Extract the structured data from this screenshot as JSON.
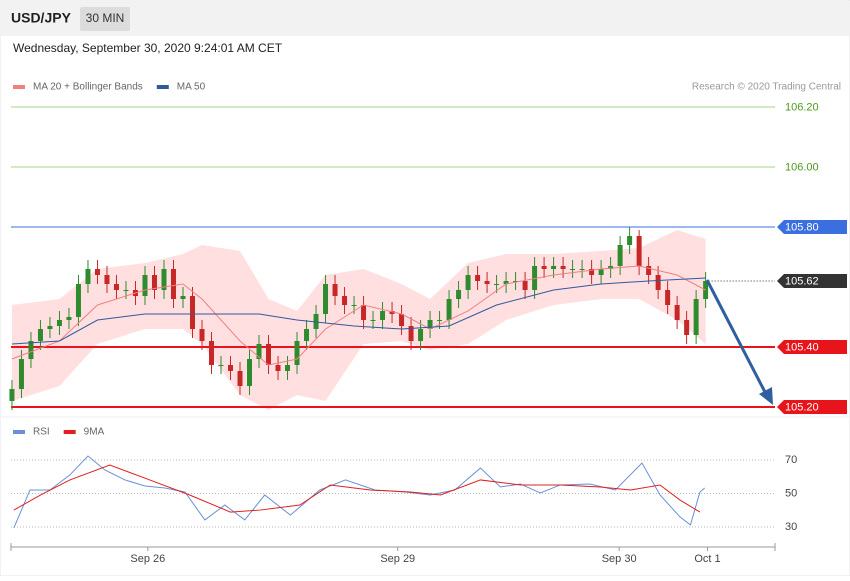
{
  "header": {
    "symbol": "USD/JPY",
    "interval": "30 MIN",
    "timestamp": "Wednesday, September 30, 2020 9:24:01 AM CET"
  },
  "chart_data": [
    {
      "type": "candlestick",
      "credit": "Research © 2020 Trading Central",
      "xlim": [
        -0.1,
        80.3
      ],
      "xticks": [
        {
          "value": 14.3,
          "label": "Sep 26"
        },
        {
          "value": 40.6,
          "label": "Sep 29"
        },
        {
          "value": 63.9,
          "label": "Sep 30"
        },
        {
          "value": 73.2,
          "label": "Oct 1"
        }
      ],
      "ylim": [
        105.18,
        106.24
      ],
      "up_color": "#2e8b2e",
      "down_color": "#c62828",
      "open": [
        105.22,
        105.26,
        105.36,
        105.42,
        105.46,
        105.47,
        105.49,
        105.5,
        105.61,
        105.66,
        105.64,
        105.61,
        105.59,
        105.59,
        105.57,
        105.64,
        105.59,
        105.66,
        105.56,
        105.57,
        105.46,
        105.42,
        105.34,
        105.34,
        105.32,
        105.27,
        105.36,
        105.41,
        105.34,
        105.32,
        105.34,
        105.42,
        105.46,
        105.51,
        105.61,
        105.57,
        105.54,
        105.54,
        105.49,
        105.49,
        105.52,
        105.51,
        105.47,
        105.42,
        105.46,
        105.49,
        105.49,
        105.56,
        105.59,
        105.64,
        105.62,
        105.61,
        105.61,
        105.62,
        105.62,
        105.59,
        105.67,
        105.66,
        105.67,
        105.66,
        105.66,
        105.66,
        105.64,
        105.66,
        105.67,
        105.74,
        105.77,
        105.67,
        105.64,
        105.59,
        105.54,
        105.49,
        105.44,
        105.56
      ],
      "high": [
        105.29,
        105.39,
        105.45,
        105.49,
        105.5,
        105.52,
        105.53,
        105.64,
        105.69,
        105.69,
        105.67,
        105.64,
        105.62,
        105.62,
        105.67,
        105.67,
        105.69,
        105.69,
        105.6,
        105.6,
        105.49,
        105.45,
        105.37,
        105.37,
        105.35,
        105.39,
        105.44,
        105.44,
        105.37,
        105.37,
        105.45,
        105.49,
        105.54,
        105.64,
        105.64,
        105.6,
        105.57,
        105.57,
        105.52,
        105.55,
        105.55,
        105.54,
        105.5,
        105.49,
        105.52,
        105.52,
        105.59,
        105.62,
        105.67,
        105.67,
        105.65,
        105.64,
        105.65,
        105.65,
        105.65,
        105.7,
        105.7,
        105.7,
        105.7,
        105.69,
        105.69,
        105.69,
        105.69,
        105.7,
        105.77,
        105.8,
        105.79,
        105.7,
        105.67,
        105.62,
        105.57,
        105.52,
        105.59,
        105.65
      ],
      "low": [
        105.19,
        105.23,
        105.33,
        105.39,
        105.43,
        105.44,
        105.46,
        105.47,
        105.58,
        105.61,
        105.58,
        105.56,
        105.56,
        105.54,
        105.54,
        105.56,
        105.56,
        105.53,
        105.53,
        105.43,
        105.39,
        105.31,
        105.31,
        105.29,
        105.24,
        105.24,
        105.33,
        105.31,
        105.29,
        105.29,
        105.31,
        105.39,
        105.43,
        105.48,
        105.54,
        105.51,
        105.51,
        105.46,
        105.46,
        105.46,
        105.48,
        105.44,
        105.39,
        105.39,
        105.43,
        105.46,
        105.46,
        105.53,
        105.56,
        105.59,
        105.58,
        105.58,
        105.58,
        105.59,
        105.56,
        105.56,
        105.63,
        105.63,
        105.63,
        105.63,
        105.63,
        105.61,
        105.61,
        105.63,
        105.64,
        105.71,
        105.64,
        105.61,
        105.56,
        105.51,
        105.46,
        105.41,
        105.41,
        105.53
      ],
      "close": [
        105.26,
        105.36,
        105.42,
        105.46,
        105.47,
        105.49,
        105.5,
        105.61,
        105.66,
        105.64,
        105.61,
        105.59,
        105.59,
        105.57,
        105.64,
        105.59,
        105.66,
        105.56,
        105.57,
        105.46,
        105.42,
        105.34,
        105.34,
        105.32,
        105.27,
        105.36,
        105.41,
        105.34,
        105.32,
        105.34,
        105.42,
        105.46,
        105.51,
        105.61,
        105.57,
        105.54,
        105.54,
        105.49,
        105.49,
        105.52,
        105.51,
        105.47,
        105.42,
        105.46,
        105.49,
        105.49,
        105.56,
        105.59,
        105.64,
        105.62,
        105.61,
        105.61,
        105.62,
        105.62,
        105.59,
        105.67,
        105.66,
        105.67,
        105.66,
        105.66,
        105.66,
        105.64,
        105.66,
        105.67,
        105.74,
        105.77,
        105.67,
        105.64,
        105.59,
        105.54,
        105.49,
        105.44,
        105.56,
        105.62
      ],
      "series": [
        {
          "name": "MA 20 + Bollinger Bands",
          "color": "#f08080",
          "band_color": "#ffd9d9",
          "x": [
            0,
            5,
            9,
            14,
            18,
            20,
            24,
            27,
            30,
            33,
            37,
            41,
            44,
            48,
            52,
            57,
            62,
            66,
            70,
            73
          ],
          "values": [
            105.36,
            105.42,
            105.54,
            105.59,
            105.61,
            105.56,
            105.42,
            105.34,
            105.36,
            105.46,
            105.54,
            105.51,
            105.46,
            105.52,
            105.61,
            105.64,
            105.66,
            105.67,
            105.64,
            105.59
          ],
          "upper": [
            105.54,
            105.56,
            105.66,
            105.68,
            105.71,
            105.74,
            105.72,
            105.56,
            105.52,
            105.64,
            105.66,
            105.61,
            105.56,
            105.68,
            105.71,
            105.71,
            105.72,
            105.73,
            105.79,
            105.76
          ],
          "lower": [
            105.22,
            105.27,
            105.41,
            105.46,
            105.46,
            105.41,
            105.24,
            105.19,
            105.24,
            105.22,
            105.41,
            105.42,
            105.39,
            105.41,
            105.49,
            105.54,
            105.56,
            105.56,
            105.49,
            105.41
          ]
        },
        {
          "name": "MA 50",
          "color": "#2e5a9e",
          "x": [
            0,
            5,
            9,
            14,
            20,
            26,
            30,
            36,
            41,
            46,
            51,
            57,
            62,
            67,
            73
          ],
          "values": [
            105.41,
            105.42,
            105.49,
            105.51,
            105.51,
            105.51,
            105.49,
            105.47,
            105.46,
            105.47,
            105.54,
            105.59,
            105.61,
            105.62,
            105.63
          ]
        }
      ],
      "levels": [
        {
          "value": 106.2,
          "label": "106.20",
          "color": "#a6d585",
          "text_color": "#4d9a1e",
          "style": "plain"
        },
        {
          "value": 106.0,
          "label": "106.00",
          "color": "#a6d585",
          "text_color": "#4d9a1e",
          "style": "plain"
        },
        {
          "value": 105.8,
          "label": "105.80",
          "color": "#3b6fe0",
          "text_color": "#ffffff",
          "style": "tag"
        },
        {
          "value": 105.62,
          "label": "105.62",
          "color": "#333333",
          "text_color": "#ffffff",
          "style": "dotted-tag"
        },
        {
          "value": 105.4,
          "label": "105.40",
          "color": "#e8141b",
          "text_color": "#ffffff",
          "style": "bold-tag"
        },
        {
          "value": 105.2,
          "label": "105.20",
          "color": "#e8141b",
          "text_color": "#ffffff",
          "style": "bold-tag"
        }
      ]
    },
    {
      "type": "line",
      "xlim": [
        -0.1,
        80.3
      ],
      "ylim": [
        24,
        76
      ],
      "yticks": [
        70,
        50,
        30
      ],
      "series": [
        {
          "name": "RSI",
          "color": "#6a8fd8",
          "x": [
            0.2,
            1.9,
            4,
            6.1,
            8,
            9.8,
            11.9,
            14,
            16.1,
            18.2,
            20.3,
            22.4,
            24.5,
            26.6,
            29.3,
            32.4,
            35.1,
            38.2,
            41.4,
            44,
            46.6,
            49.3,
            51.4,
            53.5,
            55.6,
            57.7,
            60.8,
            63.5,
            66.3,
            68.2,
            70.3,
            71.4,
            72.4,
            72.9
          ],
          "values": [
            29.4,
            52.1,
            52.1,
            61.1,
            72.4,
            64,
            58.1,
            54.5,
            53.3,
            50.9,
            34.2,
            43.1,
            34.2,
            49.1,
            37.1,
            52.1,
            58.1,
            52.1,
            50.9,
            49.1,
            52.1,
            65.2,
            53.9,
            55.7,
            50.3,
            55.1,
            55.7,
            52.1,
            68.2,
            49.1,
            36,
            31.2,
            50.9,
            53.3
          ]
        },
        {
          "name": "9MA",
          "color": "#e02020",
          "x": [
            0.2,
            3,
            6.1,
            10.3,
            14.5,
            18.7,
            23,
            26.1,
            30.3,
            33.5,
            37.7,
            41.9,
            45.1,
            49.3,
            53.5,
            57.7,
            61.9,
            65.1,
            68.2,
            70.3,
            72.4
          ],
          "values": [
            40.1,
            49.1,
            58.1,
            67,
            58.1,
            49.1,
            38.9,
            40.1,
            43.1,
            55.1,
            52.1,
            50.9,
            49.1,
            58.1,
            55.1,
            55.1,
            53.9,
            52.1,
            55.1,
            46.1,
            38.9
          ]
        }
      ]
    }
  ]
}
